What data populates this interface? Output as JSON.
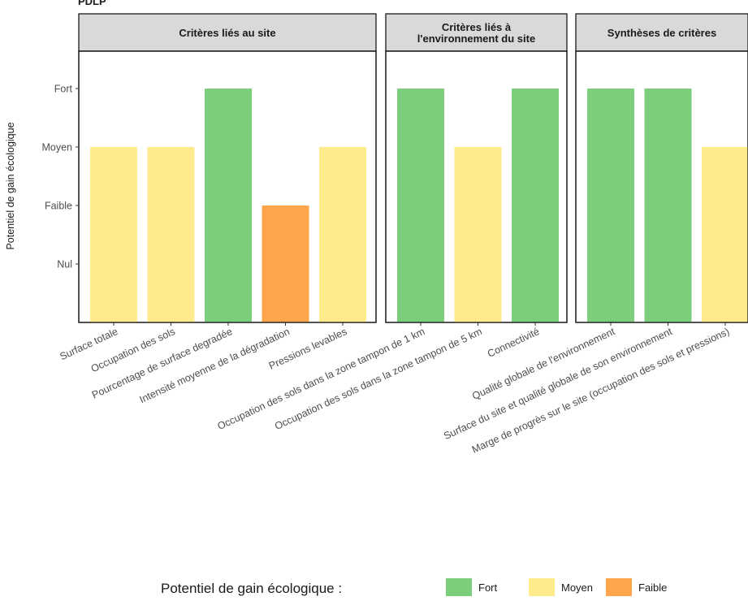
{
  "chart_data": {
    "type": "bar",
    "title_fragment": "PDLP",
    "ylabel": "Potentiel de gain écologique",
    "y_levels": [
      "Nul",
      "Faible",
      "Moyen",
      "Fort"
    ],
    "legend": {
      "title": "Potentiel de gain écologique :",
      "placement": "bottom",
      "entries": [
        {
          "label": "Fort",
          "color": "#7ccd7c"
        },
        {
          "label": "Moyen",
          "color": "#ffeb8c"
        },
        {
          "label": "Faible",
          "color": "#ffa64d"
        }
      ]
    },
    "grid": false,
    "facets": [
      {
        "title": [
          "Critères liés au site"
        ],
        "bars": [
          {
            "label": "Surface totale",
            "value": "Moyen"
          },
          {
            "label": "Occupation des sols",
            "value": "Moyen"
          },
          {
            "label": "Pourcentage de surface degradée",
            "value": "Fort"
          },
          {
            "label": "Intensité moyenne de la dégradation",
            "value": "Faible"
          },
          {
            "label": "Pressions levables",
            "value": "Moyen"
          }
        ]
      },
      {
        "title": [
          "Critères liés à",
          "l'environnement du site"
        ],
        "bars": [
          {
            "label": "Occupation des sols dans la zone tampon de 1 km",
            "value": "Fort"
          },
          {
            "label": "Occupation des sols dans la zone tampon de 5 km",
            "value": "Moyen"
          },
          {
            "label": "Connectivité",
            "value": "Fort"
          }
        ]
      },
      {
        "title": [
          "Synthèses de critères"
        ],
        "bars": [
          {
            "label": "Qualité globale de l'environnement",
            "value": "Fort"
          },
          {
            "label": "Surface du site et qualité globale de son environnement",
            "value": "Fort"
          },
          {
            "label": "Marge de progrès sur le site (occupation des sols et pressions)",
            "value": "Moyen"
          }
        ]
      }
    ]
  }
}
